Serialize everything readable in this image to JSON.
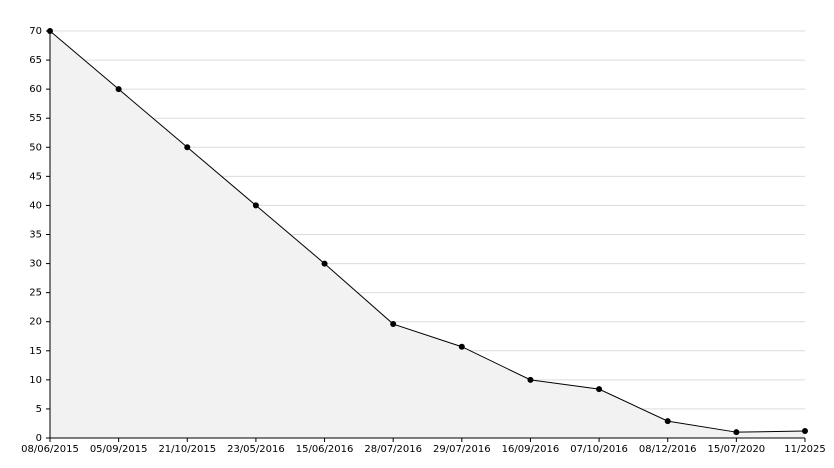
{
  "chart_data": {
    "type": "area",
    "categories": [
      "08/06/2015",
      "05/09/2015",
      "21/10/2015",
      "23/05/2016",
      "15/06/2016",
      "28/07/2016",
      "29/07/2016",
      "16/09/2016",
      "07/10/2016",
      "08/12/2016",
      "15/07/2020",
      "11/2025"
    ],
    "values": [
      70,
      60,
      50,
      40,
      30,
      19.6,
      15.7,
      10,
      8.4,
      2.9,
      1,
      1.2
    ],
    "color": "#000000",
    "fill": "#f2f2f2",
    "ylim": [
      0,
      70
    ],
    "yticks": [
      0,
      5,
      10,
      15,
      20,
      25,
      30,
      35,
      40,
      45,
      50,
      55,
      60,
      65,
      70
    ],
    "grid": true
  }
}
